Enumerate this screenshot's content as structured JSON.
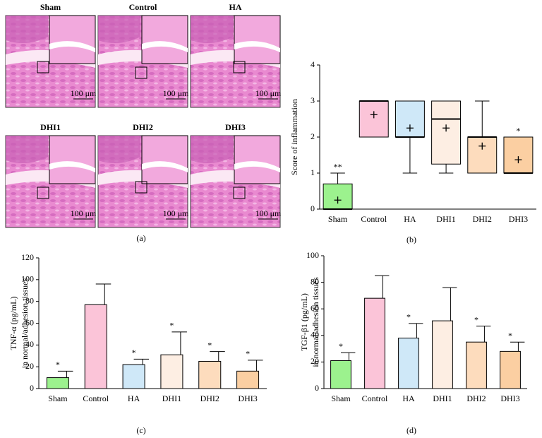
{
  "figure_a": {
    "caption": "(a)",
    "panels": [
      {
        "label": "Sham",
        "scale": "100 μm"
      },
      {
        "label": "Control",
        "scale": "100 μm"
      },
      {
        "label": "HA",
        "scale": "100 μm"
      },
      {
        "label": "DHI1",
        "scale": "100 μm"
      },
      {
        "label": "DHI2",
        "scale": "100 μm"
      },
      {
        "label": "DHI3",
        "scale": "100 μm"
      }
    ]
  },
  "chart_data": [
    {
      "type": "box",
      "caption": "(b)",
      "ylabel": [
        "Score of inflammation"
      ],
      "categories": [
        "Sham",
        "Control",
        "HA",
        "DHI1",
        "DHI2",
        "DHI3"
      ],
      "colors": [
        "#9cf28e",
        "#fbc4d8",
        "#cfe8f8",
        "#fdeee3",
        "#fddcbd",
        "#fbcfa2"
      ],
      "min": [
        0,
        2,
        1,
        1,
        1,
        1
      ],
      "q1": [
        0,
        2,
        2,
        1.25,
        1,
        1
      ],
      "median": [
        0,
        3,
        2,
        2.5,
        2,
        1
      ],
      "q3": [
        0.7,
        3,
        3,
        3,
        2,
        2
      ],
      "max": [
        1,
        3,
        3,
        3,
        3,
        2
      ],
      "mean": [
        0.25,
        2.62,
        2.25,
        2.25,
        1.75,
        1.37
      ],
      "annotations": [
        "**",
        null,
        null,
        null,
        null,
        "*"
      ],
      "ylim": [
        0,
        4
      ],
      "yticks": [
        0,
        1,
        2,
        3,
        4
      ]
    },
    {
      "type": "bar",
      "caption": "(c)",
      "ylabel": [
        "TNF-α (pg/mL)",
        "in normal/adhesion tissues"
      ],
      "categories": [
        "Sham",
        "Control",
        "HA",
        "DHI1",
        "DHI2",
        "DHI3"
      ],
      "colors": [
        "#9cf28e",
        "#fbc4d8",
        "#cfe8f8",
        "#fdeee3",
        "#fddcbd",
        "#fbcfa2"
      ],
      "values": [
        10,
        77,
        22,
        31,
        25,
        16
      ],
      "errors": [
        6,
        19,
        5,
        21,
        9,
        10
      ],
      "annotations": [
        "*",
        null,
        "*",
        "*",
        "*",
        "*"
      ],
      "ylim": [
        0,
        120
      ],
      "yticks": [
        0,
        20,
        40,
        60,
        80,
        100,
        120
      ]
    },
    {
      "type": "bar",
      "caption": "(d)",
      "ylabel": [
        "TGF-β1 (pg/mL)",
        "in normal/adhesion tissues"
      ],
      "categories": [
        "Sham",
        "Control",
        "HA",
        "DHI1",
        "DHI2",
        "DHI3"
      ],
      "colors": [
        "#9cf28e",
        "#fbc4d8",
        "#cfe8f8",
        "#fdeee3",
        "#fddcbd",
        "#fbcfa2"
      ],
      "values": [
        21,
        68,
        38,
        51,
        35,
        28
      ],
      "errors": [
        6,
        17,
        11,
        25,
        12,
        7
      ],
      "annotations": [
        "*",
        null,
        "*",
        null,
        "*",
        "*"
      ],
      "ylim": [
        0,
        100
      ],
      "yticks": [
        0,
        20,
        40,
        60,
        80,
        100
      ]
    }
  ]
}
